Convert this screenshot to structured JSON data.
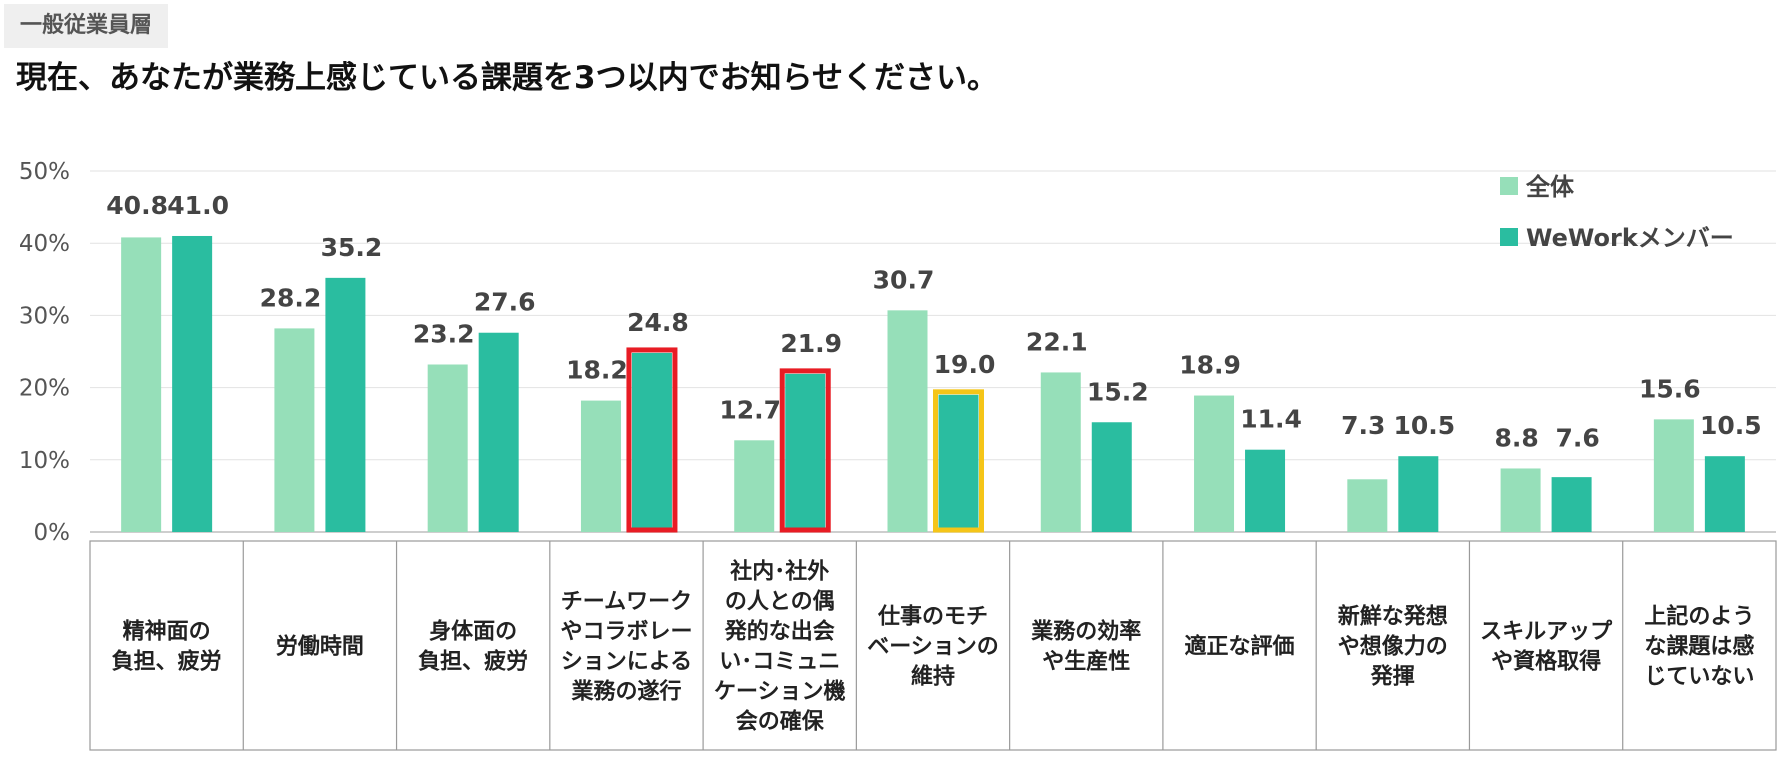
{
  "header": {
    "tag": "一般従業員層",
    "question": "現在、あなたが業務上感じている課題を3つ以内でお知らせください。"
  },
  "colors": {
    "all": "#96dfb9",
    "wework": "#2abda0",
    "highlight_red": "#e81c24",
    "highlight_yellow": "#f5c518"
  },
  "chart_data": {
    "type": "bar",
    "title": "現在、あなたが業務上感じている課題を3つ以内でお知らせください。",
    "xlabel": "",
    "ylabel": "",
    "ylim": [
      0,
      50
    ],
    "yticks": [
      "0%",
      "10%",
      "20%",
      "30%",
      "40%",
      "50%"
    ],
    "grid": true,
    "legend_position": "top-right",
    "categories": [
      [
        "精神面の",
        "負担、疲労"
      ],
      [
        "労働時間"
      ],
      [
        "身体面の",
        "負担、疲労"
      ],
      [
        "チームワーク",
        "やコラボレー",
        "ションによる",
        "業務の遂行"
      ],
      [
        "社内･社外",
        "の人との偶",
        "発的な出会",
        "い･コミュニ",
        "ケーション機",
        "会の確保"
      ],
      [
        "仕事のモチ",
        "ベーションの",
        "維持"
      ],
      [
        "業務の効率",
        "や生産性"
      ],
      [
        "適正な評価"
      ],
      [
        "新鮮な発想",
        "や想像力の",
        "発揮"
      ],
      [
        "スキルアップ",
        "や資格取得"
      ],
      [
        "上記のよう",
        "な課題は感",
        "じていない"
      ]
    ],
    "series": [
      {
        "name": "全体",
        "values": [
          40.8,
          28.2,
          23.2,
          18.2,
          12.7,
          30.7,
          22.1,
          18.9,
          7.3,
          8.8,
          15.6
        ],
        "labels": [
          "40.8",
          "28.2",
          "23.2",
          "18.2",
          "12.7",
          "30.7",
          "22.1",
          "18.9",
          "7.3",
          "8.8",
          "15.6"
        ]
      },
      {
        "name": "WeWorkメンバー",
        "values": [
          41.0,
          35.2,
          27.6,
          24.8,
          21.9,
          19.0,
          15.2,
          11.4,
          10.5,
          7.6,
          10.5
        ],
        "labels": [
          "41.0",
          "35.2",
          "27.6",
          "24.8",
          "21.9",
          "19.0",
          "15.2",
          "11.4",
          "10.5",
          "7.6",
          "10.5"
        ]
      }
    ],
    "highlights": [
      {
        "category_index": 3,
        "series": "WeWorkメンバー",
        "color": "red"
      },
      {
        "category_index": 4,
        "series": "WeWorkメンバー",
        "color": "red"
      },
      {
        "category_index": 5,
        "series": "WeWorkメンバー",
        "color": "yellow"
      }
    ]
  }
}
